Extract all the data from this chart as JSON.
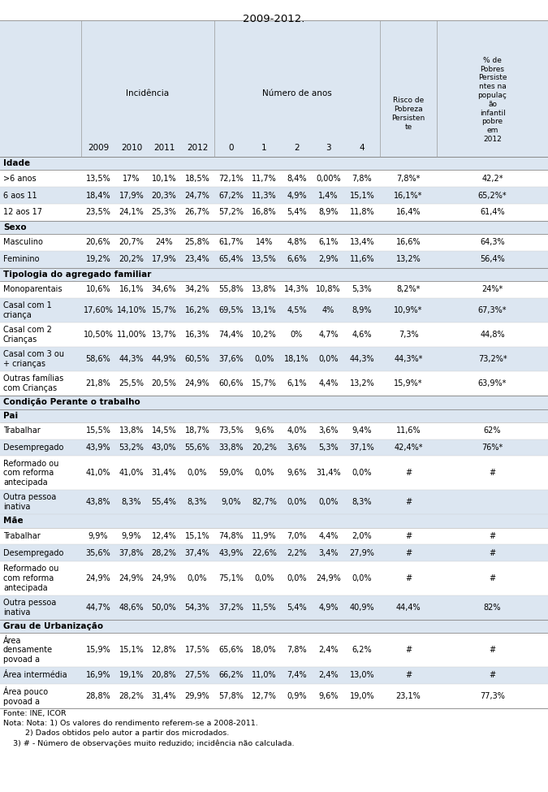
{
  "title": "2009-2012.",
  "bg_color": "#dce6f1",
  "white_color": "#ffffff",
  "footer_lines": [
    "Fonte: INE, ICOR",
    "Nota: Nota: 1) Os valores do rendimento referem-se a 2008-2011.",
    "         2) Dados obtidos pelo autor a partir dos microdados.",
    "    3) # - Número de observações muito reduzido; incidência não calculada."
  ],
  "content": [
    {
      "type": "section",
      "text": "Idade"
    },
    {
      "type": "row",
      "label": ">6 anos",
      "vals": [
        "13,5%",
        "17%",
        "10,1%",
        "18,5%",
        "72,1%",
        "11,7%",
        "8,4%",
        "0,00%",
        "7,8%",
        "7,8%*",
        "42,2*"
      ]
    },
    {
      "type": "row",
      "label": "6 aos 11",
      "vals": [
        "18,4%",
        "17,9%",
        "20,3%",
        "24,7%",
        "67,2%",
        "11,3%",
        "4,9%",
        "1,4%",
        "15,1%",
        "16,1%*",
        "65,2%*"
      ]
    },
    {
      "type": "row",
      "label": "12 aos 17",
      "vals": [
        "23,5%",
        "24,1%",
        "25,3%",
        "26,7%",
        "57,2%",
        "16,8%",
        "5,4%",
        "8,9%",
        "11,8%",
        "16,4%",
        "61,4%"
      ]
    },
    {
      "type": "section",
      "text": "Sexo"
    },
    {
      "type": "row",
      "label": "Masculino",
      "vals": [
        "20,6%",
        "20,7%",
        "24%",
        "25,8%",
        "61,7%",
        "14%",
        "4,8%",
        "6,1%",
        "13,4%",
        "16,6%",
        "64,3%"
      ]
    },
    {
      "type": "row",
      "label": "Feminino",
      "vals": [
        "19,2%",
        "20,2%",
        "17,9%",
        "23,4%",
        "65,4%",
        "13,5%",
        "6,6%",
        "2,9%",
        "11,6%",
        "13,2%",
        "56,4%"
      ]
    },
    {
      "type": "section",
      "text": "Tipologia do agregado familiar"
    },
    {
      "type": "row",
      "label": "Monoparentais",
      "vals": [
        "10,6%",
        "16,1%",
        "34,6%",
        "34,2%",
        "55,8%",
        "13,8%",
        "14,3%",
        "10,8%",
        "5,3%",
        "8,2%*",
        "24%*"
      ]
    },
    {
      "type": "row",
      "label": "Casal com 1\ncriança",
      "vals": [
        "17,60%",
        "14,10%",
        "15,7%",
        "16,2%",
        "69,5%",
        "13,1%",
        "4,5%",
        "4%",
        "8,9%",
        "10,9%*",
        "67,3%*"
      ]
    },
    {
      "type": "row",
      "label": "Casal com 2\nCrianças",
      "vals": [
        "10,50%",
        "11,00%",
        "13,7%",
        "16,3%",
        "74,4%",
        "10,2%",
        "0%",
        "4,7%",
        "4,6%",
        "7,3%",
        "44,8%"
      ]
    },
    {
      "type": "row",
      "label": "Casal com 3 ou\n+ crianças",
      "vals": [
        "58,6%",
        "44,3%",
        "44,9%",
        "60,5%",
        "37,6%",
        "0,0%",
        "18,1%",
        "0,0%",
        "44,3%",
        "44,3%*",
        "73,2%*"
      ]
    },
    {
      "type": "row",
      "label": "Outras famílias\ncom Crianças",
      "vals": [
        "21,8%",
        "25,5%",
        "20,5%",
        "24,9%",
        "60,6%",
        "15,7%",
        "6,1%",
        "4,4%",
        "13,2%",
        "15,9%*",
        "63,9%*"
      ]
    },
    {
      "type": "section",
      "text": "Condição Perante o trabalho"
    },
    {
      "type": "subheader",
      "text": "Pai"
    },
    {
      "type": "row",
      "label": "Trabalhar",
      "vals": [
        "15,5%",
        "13,8%",
        "14,5%",
        "18,7%",
        "73,5%",
        "9,6%",
        "4,0%",
        "3,6%",
        "9,4%",
        "11,6%",
        "62%"
      ]
    },
    {
      "type": "row",
      "label": "Desempregado",
      "vals": [
        "43,9%",
        "53,2%",
        "43,0%",
        "55,6%",
        "33,8%",
        "20,2%",
        "3,6%",
        "5,3%",
        "37,1%",
        "42,4%*",
        "76%*"
      ]
    },
    {
      "type": "row",
      "label": "Reformado ou\ncom reforma\nantecipada",
      "vals": [
        "41,0%",
        "41,0%",
        "31,4%",
        "0,0%",
        "59,0%",
        "0,0%",
        "9,6%",
        "31,4%",
        "0,0%",
        "#",
        "#"
      ]
    },
    {
      "type": "row",
      "label": "Outra pessoa\ninativa",
      "vals": [
        "43,8%",
        "8,3%",
        "55,4%",
        "8,3%",
        "9,0%",
        "82,7%",
        "0,0%",
        "0,0%",
        "8,3%",
        "#",
        ""
      ]
    },
    {
      "type": "subheader",
      "text": "Mãe"
    },
    {
      "type": "row",
      "label": "Trabalhar",
      "vals": [
        "9,9%",
        "9,9%",
        "12,4%",
        "15,1%",
        "74,8%",
        "11,9%",
        "7,0%",
        "4,4%",
        "2,0%",
        "#",
        "#"
      ]
    },
    {
      "type": "row",
      "label": "Desempregado",
      "vals": [
        "35,6%",
        "37,8%",
        "28,2%",
        "37,4%",
        "43,9%",
        "22,6%",
        "2,2%",
        "3,4%",
        "27,9%",
        "#",
        "#"
      ]
    },
    {
      "type": "row",
      "label": "Reformado ou\ncom reforma\nantecipada",
      "vals": [
        "24,9%",
        "24,9%",
        "24,9%",
        "0,0%",
        "75,1%",
        "0,0%",
        "0,0%",
        "24,9%",
        "0,0%",
        "#",
        "#"
      ]
    },
    {
      "type": "row",
      "label": "Outra pessoa\ninativa",
      "vals": [
        "44,7%",
        "48,6%",
        "50,0%",
        "54,3%",
        "37,2%",
        "11,5%",
        "5,4%",
        "4,9%",
        "40,9%",
        "44,4%",
        "82%"
      ]
    },
    {
      "type": "section",
      "text": "Grau de Urbanização"
    },
    {
      "type": "row",
      "label": "Área\ndensamente\npovoad a",
      "vals": [
        "15,9%",
        "15,1%",
        "12,8%",
        "17,5%",
        "65,6%",
        "18,0%",
        "7,8%",
        "2,4%",
        "6,2%",
        "#",
        "#"
      ]
    },
    {
      "type": "row",
      "label": "Área intermédia",
      "vals": [
        "16,9%",
        "19,1%",
        "20,8%",
        "27,5%",
        "66,2%",
        "11,0%",
        "7,4%",
        "2,4%",
        "13,0%",
        "#",
        "#"
      ]
    },
    {
      "type": "row",
      "label": "Área pouco\npovoad a",
      "vals": [
        "28,8%",
        "28,2%",
        "31,4%",
        "29,9%",
        "57,8%",
        "12,7%",
        "0,9%",
        "9,6%",
        "19,0%",
        "23,1%",
        "77,3%"
      ]
    }
  ]
}
